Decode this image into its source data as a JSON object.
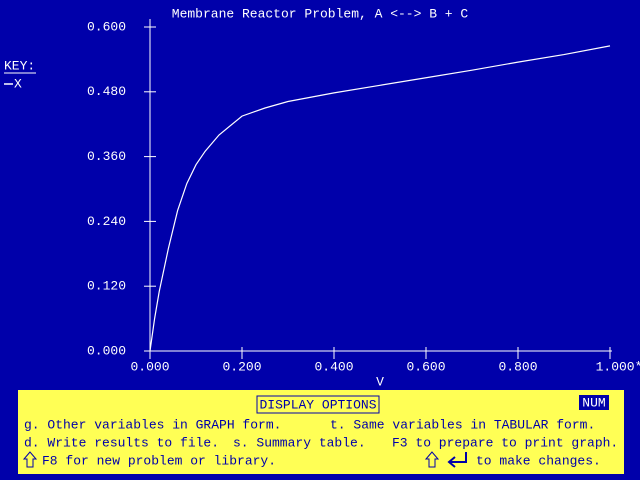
{
  "chart_data": {
    "type": "line",
    "title": "Membrane Reactor Problem, A <--> B + C",
    "x_label": "V",
    "legend_title": "KEY:",
    "x": [
      0,
      0.01,
      0.02,
      0.04,
      0.06,
      0.08,
      0.1,
      0.12,
      0.15,
      0.2,
      0.25,
      0.3,
      0.4,
      0.5,
      0.6,
      0.7,
      0.8,
      0.9,
      1.0
    ],
    "series": [
      {
        "name": "X",
        "color": "#ffffff",
        "values": [
          0,
          0.06,
          0.11,
          0.19,
          0.26,
          0.31,
          0.345,
          0.37,
          0.4,
          0.435,
          0.45,
          0.462,
          0.478,
          0.492,
          0.506,
          0.52,
          0.535,
          0.549,
          0.565
        ]
      }
    ],
    "xlim": [
      0,
      1
    ],
    "ylim": [
      0,
      0.6
    ],
    "xticks": [
      {
        "value": 0,
        "label": "0.000"
      },
      {
        "value": 0.2,
        "label": "0.200"
      },
      {
        "value": 0.4,
        "label": "0.400"
      },
      {
        "value": 0.6,
        "label": "0.600"
      },
      {
        "value": 0.8,
        "label": "0.800"
      },
      {
        "value": 1.0,
        "label": "1.000*"
      }
    ],
    "yticks": [
      {
        "value": 0,
        "label": "0.000"
      },
      {
        "value": 0.12,
        "label": "0.120"
      },
      {
        "value": 0.24,
        "label": "0.240"
      },
      {
        "value": 0.36,
        "label": "0.360"
      },
      {
        "value": 0.48,
        "label": "0.480"
      },
      {
        "value": 0.6,
        "label": "0.600"
      }
    ]
  },
  "menu": {
    "header": "DISPLAY OPTIONS",
    "status": "NUM",
    "lines": [
      [
        "g. Other variables in GRAPH form.",
        "t. Same variables in TABULAR form."
      ],
      [
        "d. Write results to file.",
        "s. Summary table.",
        "F3 to prepare to print graph."
      ],
      [
        "F8 for new problem or library.",
        "to make changes."
      ]
    ]
  }
}
